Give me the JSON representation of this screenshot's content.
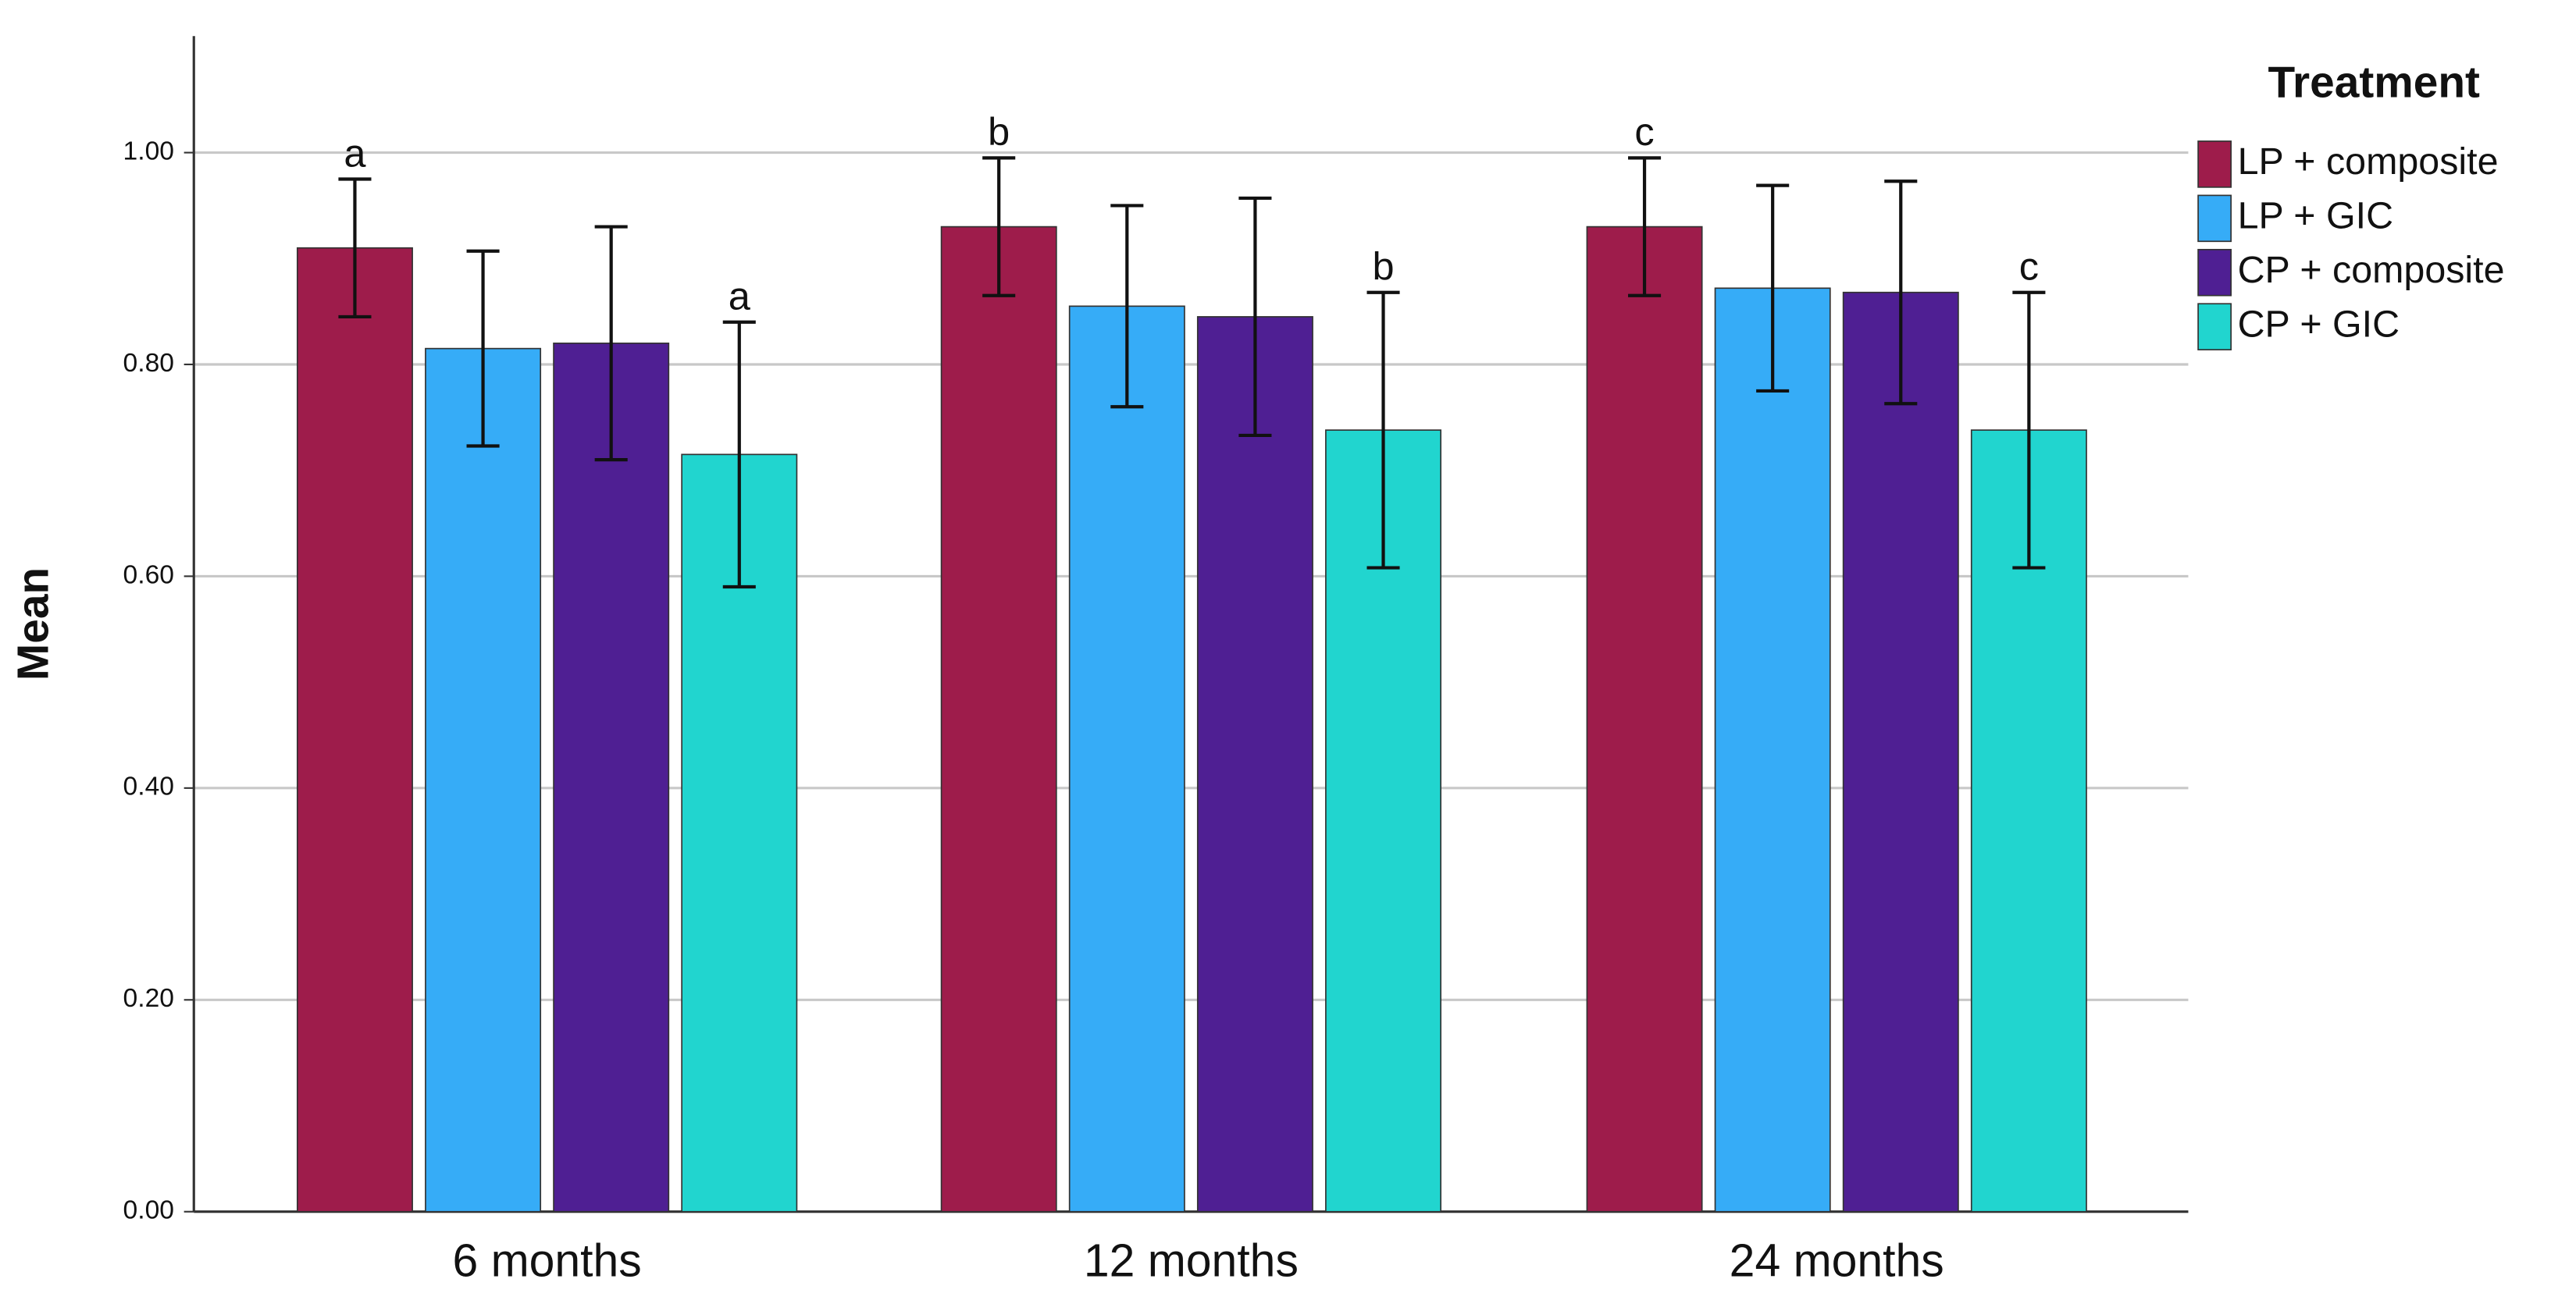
{
  "chart_data": {
    "type": "bar",
    "y_label": "Mean",
    "legend_title": "Treatment",
    "legend": "right",
    "grid": true,
    "categories": [
      "6 months",
      "12 months",
      "24 months"
    ],
    "ylim": [
      0,
      1.11
    ],
    "yticks": [
      {
        "value": 0,
        "label": "0.00"
      },
      {
        "value": 0.2,
        "label": "0.20"
      },
      {
        "value": 0.4,
        "label": "0.40"
      },
      {
        "value": 0.6,
        "label": "0.60"
      },
      {
        "value": 0.8,
        "label": "0.80"
      },
      {
        "value": 1.0,
        "label": "1.00"
      }
    ],
    "series": [
      {
        "name": "LP + composite",
        "color": "#9e1c4b",
        "values": [
          0.91,
          0.93,
          0.93
        ],
        "errors": [
          0.065,
          0.065,
          0.065
        ],
        "labels": [
          "a",
          "b",
          "c"
        ]
      },
      {
        "name": "LP + GIC",
        "color": "#36acf7",
        "values": [
          0.815,
          0.855,
          0.872
        ],
        "errors": [
          0.092,
          0.095,
          0.097
        ]
      },
      {
        "name": "CP + composite",
        "color": "#4f1f93",
        "values": [
          0.82,
          0.845,
          0.868
        ],
        "errors": [
          0.11,
          0.112,
          0.105
        ]
      },
      {
        "name": "CP + GIC",
        "color": "#21d5cf",
        "values": [
          0.715,
          0.738,
          0.738
        ],
        "errors": [
          0.125,
          0.13,
          0.13
        ],
        "labels": [
          "a",
          "b",
          "c"
        ]
      }
    ]
  }
}
